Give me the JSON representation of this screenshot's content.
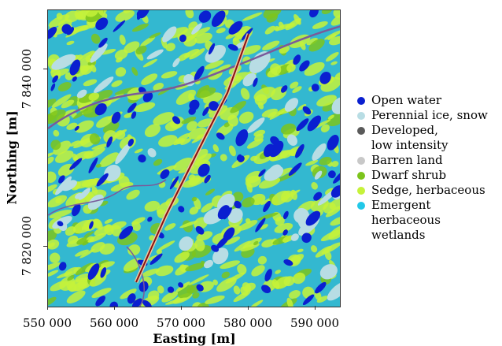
{
  "map": {
    "x_axis": {
      "title": "Easting [m]",
      "ticks": [
        "550 000",
        "560 000",
        "570 000",
        "580 000",
        "590 000"
      ]
    },
    "y_axis": {
      "title": "Northing [m]",
      "ticks": [
        "7 840 000",
        "7 820 000"
      ]
    }
  },
  "legend": [
    {
      "label": "Open water",
      "color": "#0a1fd0"
    },
    {
      "label": "Perennial ice, snow",
      "color": "#b8dde4"
    },
    {
      "label": "Developed,",
      "label2": "low intensity",
      "color": "#5a5a5a"
    },
    {
      "label": "Barren land",
      "color": "#c8c8c8"
    },
    {
      "label": "Dwarf shrub",
      "color": "#7cc41c"
    },
    {
      "label": "Sedge, herbaceous",
      "color": "#c6f23a"
    },
    {
      "label": "Emergent herbaceous",
      "label2": "wetlands",
      "color": "#22c8e8"
    }
  ],
  "colors": {
    "background_wetland": "#33b8d0",
    "sedge": "#c6f23a",
    "water": "#0a1fd0",
    "ice": "#b8dde4",
    "river": "#7a5a9a",
    "corridor": "#8a1010"
  }
}
